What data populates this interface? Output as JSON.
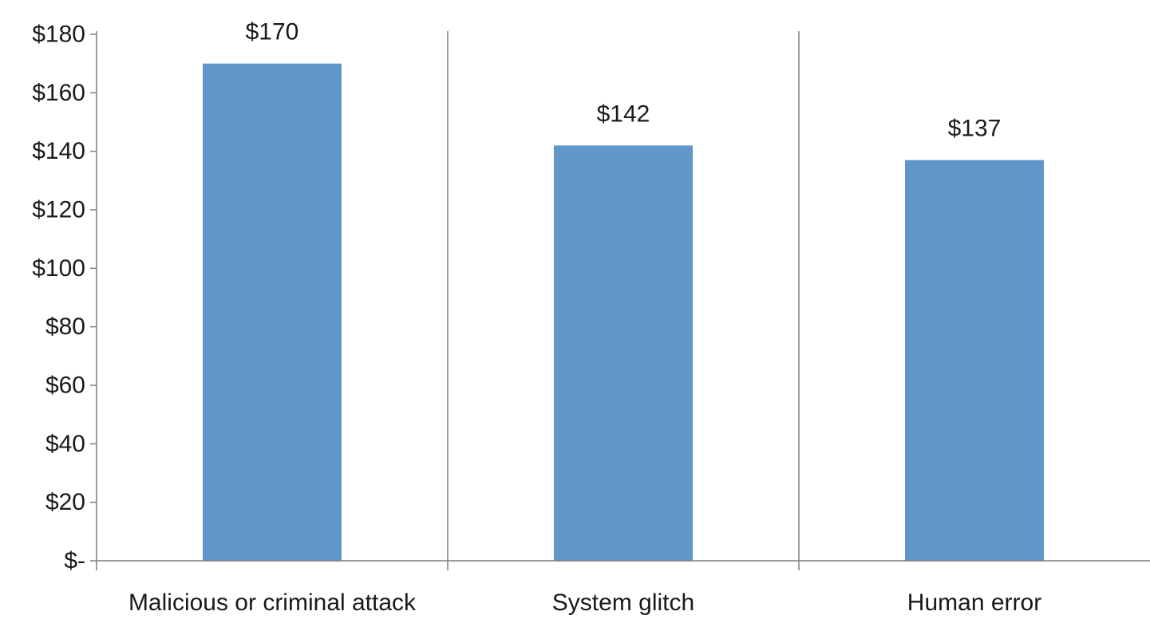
{
  "chart_data": {
    "type": "bar",
    "categories": [
      "Malicious or criminal attack",
      "System glitch",
      "Human error"
    ],
    "values": [
      170,
      142,
      137
    ],
    "data_labels": [
      "$170",
      "$142",
      "$137"
    ],
    "y_tick_values": [
      0,
      20,
      40,
      60,
      80,
      100,
      120,
      140,
      160,
      180
    ],
    "y_tick_labels": [
      "$-",
      "$20",
      "$40",
      "$60",
      "$80",
      "$100",
      "$120",
      "$140",
      "$160",
      "$180"
    ],
    "ylim": [
      0,
      180
    ],
    "title": "",
    "xlabel": "",
    "ylabel": "",
    "grid": false,
    "category_separators": true,
    "bar_color": "#6096C8",
    "axis_color": "#7f7f7f"
  }
}
